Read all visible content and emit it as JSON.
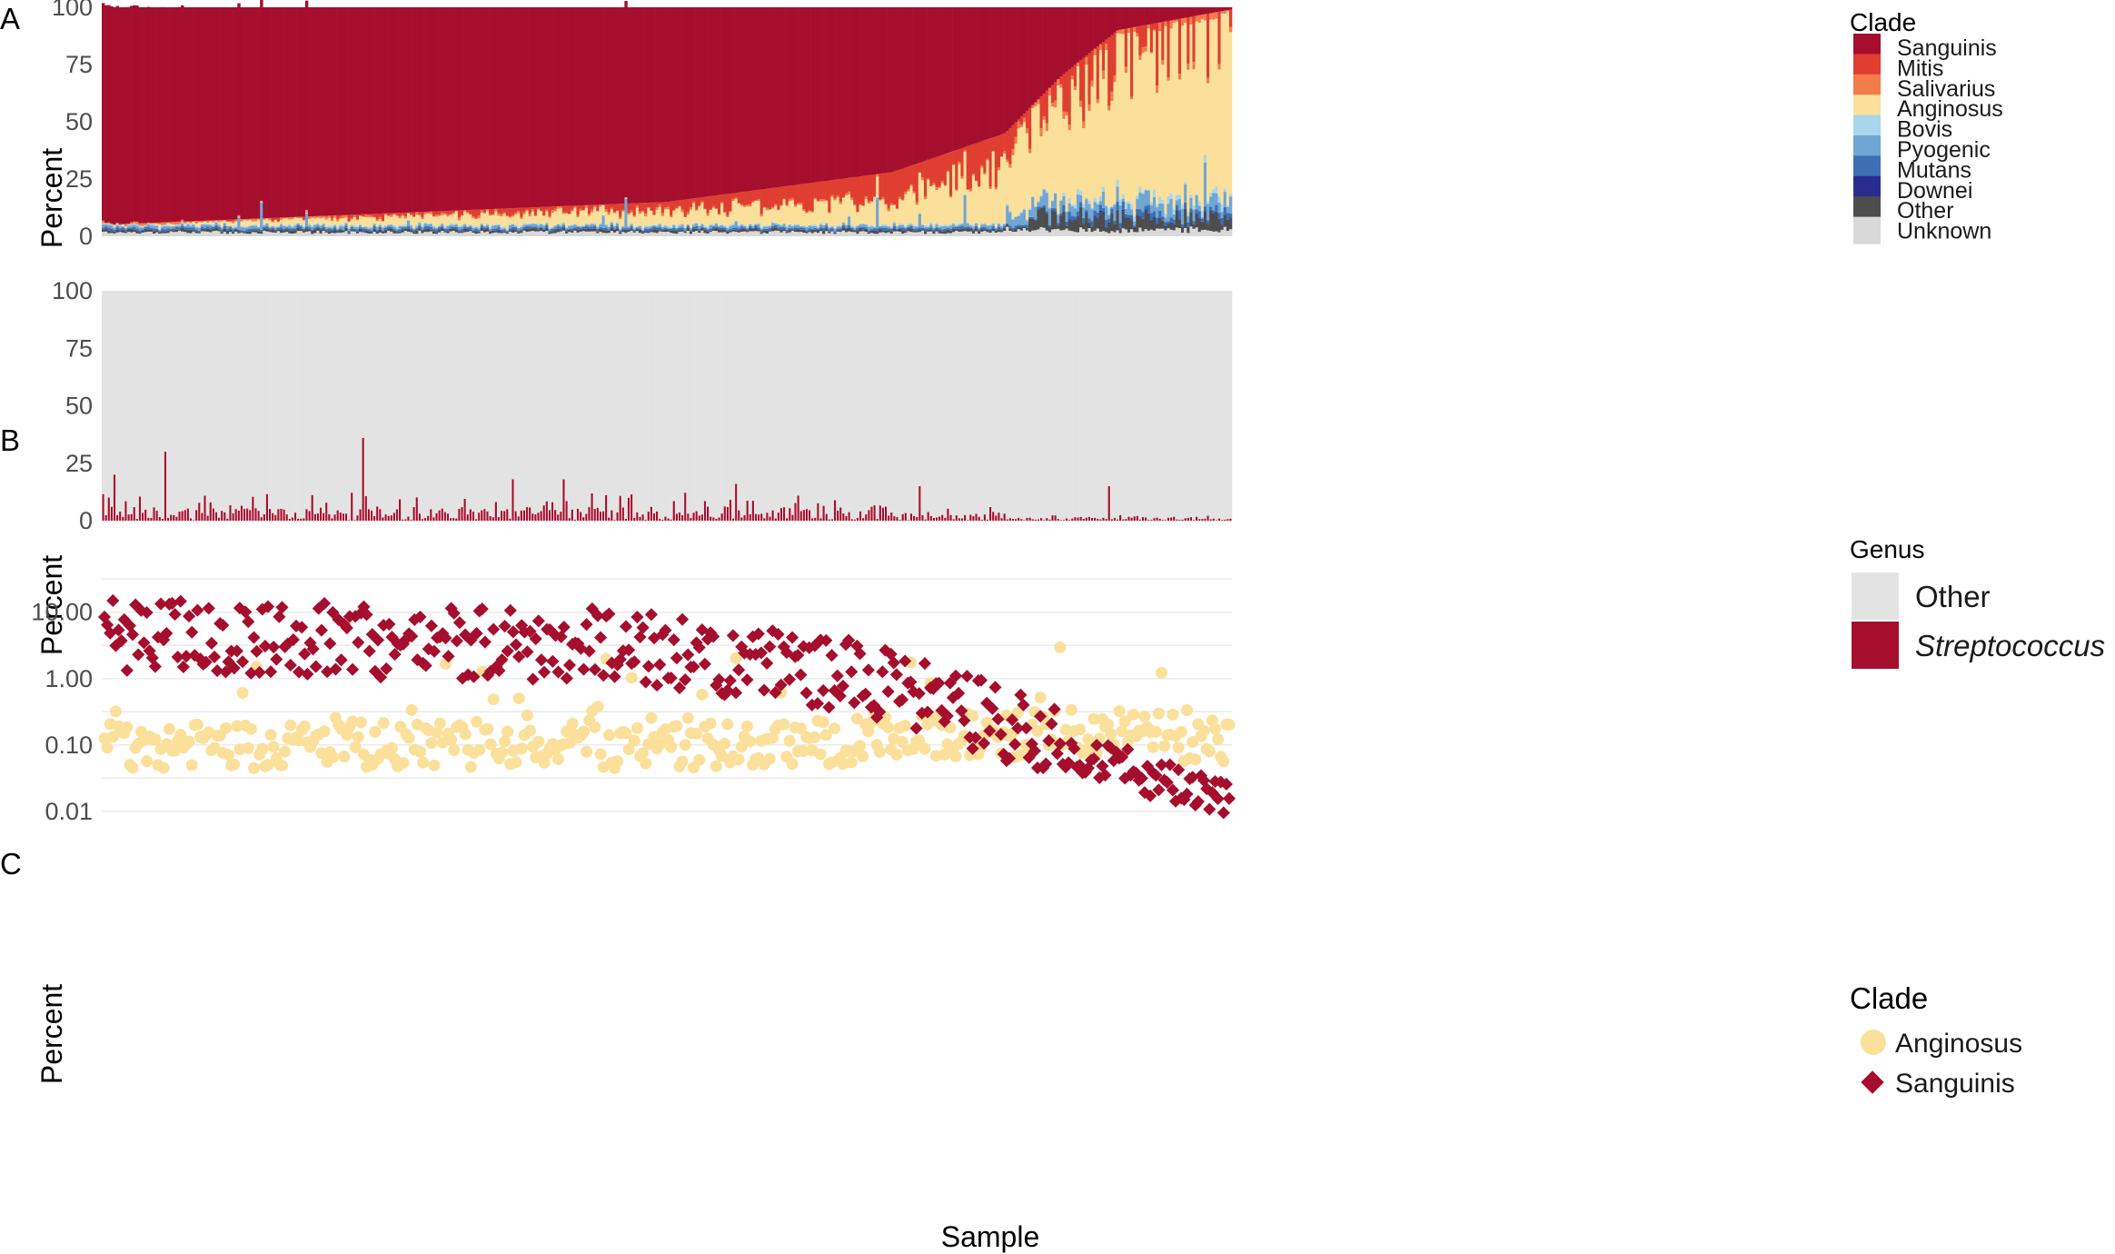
{
  "chart_data": [
    {
      "panel_label": "A",
      "type": "bar",
      "stacked": true,
      "ylabel": "Percent",
      "ylim": [
        0,
        100
      ],
      "yticks": [
        0,
        25,
        50,
        75,
        100
      ],
      "n_samples": 400,
      "legend": {
        "title": "Clade",
        "placement": "right"
      },
      "series": [
        {
          "name": "Unknown",
          "color": "#d9d9d9"
        },
        {
          "name": "Other",
          "color": "#4d4d4d"
        },
        {
          "name": "Downei",
          "color": "#2a2b8f"
        },
        {
          "name": "Mutans",
          "color": "#3e6fb3"
        },
        {
          "name": "Pyogenic",
          "color": "#6fa6d4"
        },
        {
          "name": "Bovis",
          "color": "#a9d6ea"
        },
        {
          "name": "Anginosus",
          "color": "#fbe09b"
        },
        {
          "name": "Salivarius",
          "color": "#f27c4a"
        },
        {
          "name": "Mitis",
          "color": "#df3e31"
        },
        {
          "name": "Sanguinis",
          "color": "#a50e2c"
        }
      ],
      "legend_order": [
        "Sanguinis",
        "Mitis",
        "Salivarius",
        "Anginosus",
        "Bovis",
        "Pyogenic",
        "Mutans",
        "Downei",
        "Other",
        "Unknown"
      ],
      "profile": {
        "sanguinis_share_at_quantile": [
          [
            0,
            95
          ],
          [
            0.5,
            85
          ],
          [
            0.7,
            72
          ],
          [
            0.8,
            55
          ],
          [
            0.85,
            30
          ],
          [
            0.9,
            10
          ],
          [
            1,
            1
          ]
        ],
        "anginosus_share_at_quantile": [
          [
            0,
            1
          ],
          [
            0.5,
            6
          ],
          [
            0.7,
            10
          ],
          [
            0.8,
            25
          ],
          [
            0.87,
            50
          ],
          [
            0.9,
            65
          ],
          [
            1,
            80
          ]
        ]
      }
    },
    {
      "panel_label": "B",
      "type": "bar",
      "stacked": true,
      "ylabel": "Percent",
      "ylim": [
        0,
        100
      ],
      "yticks": [
        0,
        25,
        50,
        75,
        100
      ],
      "n_samples": 400,
      "legend": {
        "title": "Genus",
        "placement": "right"
      },
      "series": [
        {
          "name": "Other",
          "color": "#e3e3e3"
        },
        {
          "name": "Streptococcus",
          "color": "#a50e2c"
        }
      ],
      "notable_values": [
        {
          "sample_index": 4,
          "streptococcus": 20
        },
        {
          "sample_index": 22,
          "streptococcus": 30
        },
        {
          "sample_index": 92,
          "streptococcus": 36
        },
        {
          "sample_index": 145,
          "streptococcus": 18
        },
        {
          "sample_index": 163,
          "streptococcus": 18
        },
        {
          "sample_index": 224,
          "streptococcus": 16
        },
        {
          "sample_index": 289,
          "streptococcus": 15
        },
        {
          "sample_index": 356,
          "streptococcus": 15
        }
      ]
    },
    {
      "panel_label": "C",
      "type": "scatter",
      "xlabel": "Sample",
      "ylabel": "Percent",
      "yscale": "log10",
      "ylim": [
        0.0085,
        35
      ],
      "ytick_labels": [
        "0.01",
        "0.10",
        "1.00",
        "10.00"
      ],
      "n_samples": 400,
      "legend": {
        "title": "Clade",
        "placement": "right"
      },
      "series": [
        {
          "name": "Anginosus",
          "color": "#fbe09b",
          "marker": "circle"
        },
        {
          "name": "Sanguinis",
          "color": "#a50e2c",
          "marker": "diamond"
        }
      ],
      "profile": {
        "sanguinis_log10_at_quantile": [
          [
            0,
            0.65
          ],
          [
            0.45,
            0.5
          ],
          [
            0.65,
            0.1
          ],
          [
            0.78,
            -0.55
          ],
          [
            0.88,
            -1.2
          ],
          [
            1,
            -1.85
          ]
        ],
        "anginosus_log10_at_quantile": [
          [
            0,
            -1.0
          ],
          [
            0.6,
            -1.0
          ],
          [
            0.78,
            -0.85
          ],
          [
            0.88,
            -0.8
          ],
          [
            1,
            -0.95
          ]
        ]
      }
    }
  ]
}
